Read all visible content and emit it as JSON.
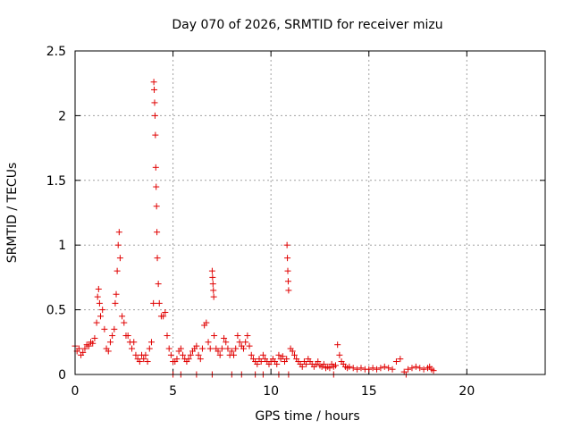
{
  "chart_data": {
    "type": "scatter",
    "title": "Day 070 of 2026, SRMTID for receiver mizu",
    "xlabel": "GPS time / hours",
    "ylabel": "SRMTID / TECUs",
    "xlim": [
      0,
      24
    ],
    "ylim": [
      0,
      2.5
    ],
    "xticks": [
      0,
      5,
      10,
      15,
      20
    ],
    "xtick_labels": [
      "0",
      "5",
      "10",
      "15",
      "20"
    ],
    "yticks": [
      0,
      0.5,
      1,
      1.5,
      2,
      2.5
    ],
    "ytick_labels": [
      "0",
      "0.5",
      "1",
      "1.5",
      "2",
      "2.5"
    ],
    "grid": true,
    "marker": "+",
    "color": "#e00000",
    "series": [
      {
        "name": "SRMTID",
        "x": [
          0.0,
          0.1,
          0.2,
          0.3,
          0.4,
          0.5,
          0.6,
          0.7,
          0.8,
          0.9,
          1.0,
          1.1,
          1.15,
          1.2,
          1.25,
          1.3,
          1.4,
          1.5,
          1.6,
          1.7,
          1.8,
          1.9,
          2.0,
          2.05,
          2.1,
          2.15,
          2.2,
          2.25,
          2.3,
          2.4,
          2.5,
          2.6,
          2.7,
          2.8,
          2.9,
          3.0,
          3.1,
          3.2,
          3.3,
          3.4,
          3.5,
          3.6,
          3.7,
          3.8,
          3.9,
          4.0,
          4.02,
          4.04,
          4.06,
          4.08,
          4.1,
          4.12,
          4.14,
          4.16,
          4.18,
          4.2,
          4.25,
          4.3,
          4.4,
          4.5,
          4.6,
          4.7,
          4.8,
          4.9,
          5.0,
          5.1,
          5.2,
          5.3,
          5.4,
          5.5,
          5.6,
          5.7,
          5.8,
          5.9,
          6.0,
          6.1,
          6.2,
          6.3,
          6.4,
          6.5,
          6.6,
          6.7,
          6.8,
          6.9,
          7.0,
          7.02,
          7.04,
          7.06,
          7.08,
          7.1,
          7.2,
          7.3,
          7.4,
          7.5,
          7.6,
          7.7,
          7.8,
          7.9,
          8.0,
          8.1,
          8.2,
          8.3,
          8.4,
          8.5,
          8.6,
          8.7,
          8.8,
          8.9,
          9.0,
          9.1,
          9.2,
          9.3,
          9.4,
          9.5,
          9.6,
          9.7,
          9.8,
          9.9,
          10.0,
          10.1,
          10.2,
          10.3,
          10.4,
          10.5,
          10.6,
          10.7,
          10.8,
          10.82,
          10.84,
          10.86,
          10.88,
          10.9,
          11.0,
          11.1,
          11.2,
          11.3,
          11.4,
          11.5,
          11.6,
          11.7,
          11.8,
          11.9,
          12.0,
          12.1,
          12.2,
          12.3,
          12.4,
          12.5,
          12.6,
          12.7,
          12.8,
          12.9,
          13.0,
          13.1,
          13.2,
          13.3,
          13.4,
          13.5,
          13.6,
          13.7,
          13.8,
          13.9,
          14.0,
          14.2,
          14.4,
          14.6,
          14.8,
          15.0,
          15.2,
          15.4,
          15.6,
          15.8,
          16.0,
          16.2,
          16.4,
          16.6,
          16.8,
          17.0,
          17.2,
          17.4,
          17.6,
          17.8,
          18.0,
          18.1,
          18.2,
          18.3,
          5.0,
          5.4,
          6.2,
          7.0,
          8.0,
          8.5,
          9.2,
          9.6,
          10.4,
          10.9,
          13.2,
          16.9
        ],
        "y": [
          0.22,
          0.18,
          0.2,
          0.15,
          0.17,
          0.2,
          0.23,
          0.22,
          0.25,
          0.24,
          0.28,
          0.4,
          0.6,
          0.66,
          0.55,
          0.45,
          0.5,
          0.35,
          0.2,
          0.18,
          0.25,
          0.3,
          0.35,
          0.55,
          0.62,
          0.8,
          1.0,
          1.1,
          0.9,
          0.45,
          0.4,
          0.3,
          0.3,
          0.25,
          0.2,
          0.25,
          0.15,
          0.12,
          0.1,
          0.15,
          0.12,
          0.15,
          0.1,
          0.2,
          0.25,
          0.55,
          2.26,
          2.2,
          2.1,
          2.0,
          1.85,
          1.6,
          1.45,
          1.3,
          1.1,
          0.9,
          0.7,
          0.55,
          0.45,
          0.45,
          0.48,
          0.3,
          0.2,
          0.15,
          0.1,
          0.1,
          0.12,
          0.18,
          0.2,
          0.15,
          0.12,
          0.1,
          0.12,
          0.15,
          0.18,
          0.2,
          0.22,
          0.15,
          0.12,
          0.2,
          0.38,
          0.4,
          0.25,
          0.2,
          0.8,
          0.75,
          0.7,
          0.65,
          0.6,
          0.3,
          0.2,
          0.18,
          0.15,
          0.2,
          0.28,
          0.25,
          0.2,
          0.15,
          0.18,
          0.15,
          0.2,
          0.3,
          0.25,
          0.22,
          0.2,
          0.25,
          0.3,
          0.22,
          0.15,
          0.12,
          0.1,
          0.08,
          0.12,
          0.1,
          0.15,
          0.12,
          0.1,
          0.08,
          0.1,
          0.12,
          0.1,
          0.08,
          0.15,
          0.12,
          0.14,
          0.1,
          0.12,
          1.0,
          0.9,
          0.8,
          0.72,
          0.65,
          0.2,
          0.18,
          0.15,
          0.12,
          0.1,
          0.08,
          0.06,
          0.1,
          0.08,
          0.12,
          0.1,
          0.08,
          0.06,
          0.08,
          0.1,
          0.07,
          0.06,
          0.08,
          0.05,
          0.06,
          0.05,
          0.08,
          0.06,
          0.07,
          0.23,
          0.15,
          0.1,
          0.08,
          0.06,
          0.05,
          0.06,
          0.05,
          0.04,
          0.05,
          0.04,
          0.04,
          0.05,
          0.04,
          0.05,
          0.06,
          0.05,
          0.04,
          0.1,
          0.12,
          0.02,
          0.04,
          0.05,
          0.06,
          0.05,
          0.04,
          0.05,
          0.06,
          0.04,
          0.03,
          0.0,
          0.0,
          0.0,
          0.0,
          0.0,
          0.0,
          0.0,
          0.0,
          0.0,
          0.0,
          0.0,
          0.0
        ]
      }
    ]
  }
}
